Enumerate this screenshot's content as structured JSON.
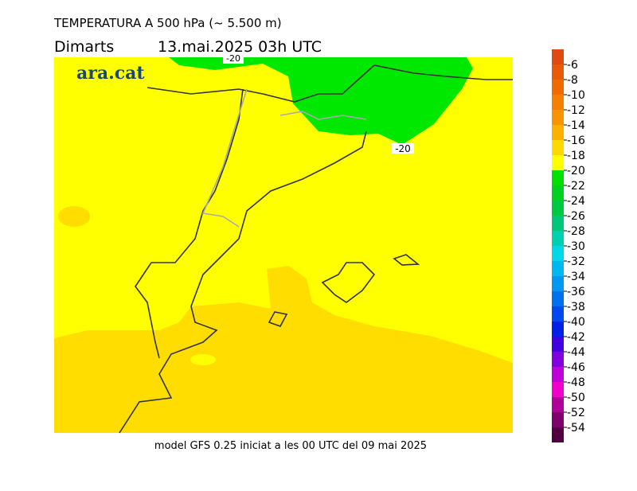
{
  "header": {
    "title": "TEMPERATURA A 500 hPa (~ 5.500 m)",
    "day": "Dimarts",
    "datetime": "13.mai.2025 03h UTC"
  },
  "logo": "ara.cat",
  "contour_labels": [
    "-20",
    "-20"
  ],
  "legend": {
    "levels": [
      -6,
      -8,
      -10,
      -12,
      -14,
      -16,
      -18,
      -20,
      -22,
      -24,
      -26,
      -28,
      -30,
      -32,
      -34,
      -36,
      -38,
      -40,
      -42,
      -44,
      -46,
      -48,
      -50,
      -52,
      -54
    ],
    "colors": [
      "#e04a10",
      "#e85a08",
      "#f06a00",
      "#f47e00",
      "#f89400",
      "#fcb000",
      "#ffd800",
      "#ffff00",
      "#00e000",
      "#00d020",
      "#00c840",
      "#00c878",
      "#00d0b0",
      "#00d8e8",
      "#00b8f0",
      "#0098f0",
      "#0070f0",
      "#0048f0",
      "#0020e8",
      "#4000e0",
      "#8000e0",
      "#c000d8",
      "#f000c8",
      "#b00098",
      "#800070",
      "#500040"
    ]
  },
  "footer": "model GFS 0.25 iniciat a les 00 UTC del 09 mai 2025"
}
